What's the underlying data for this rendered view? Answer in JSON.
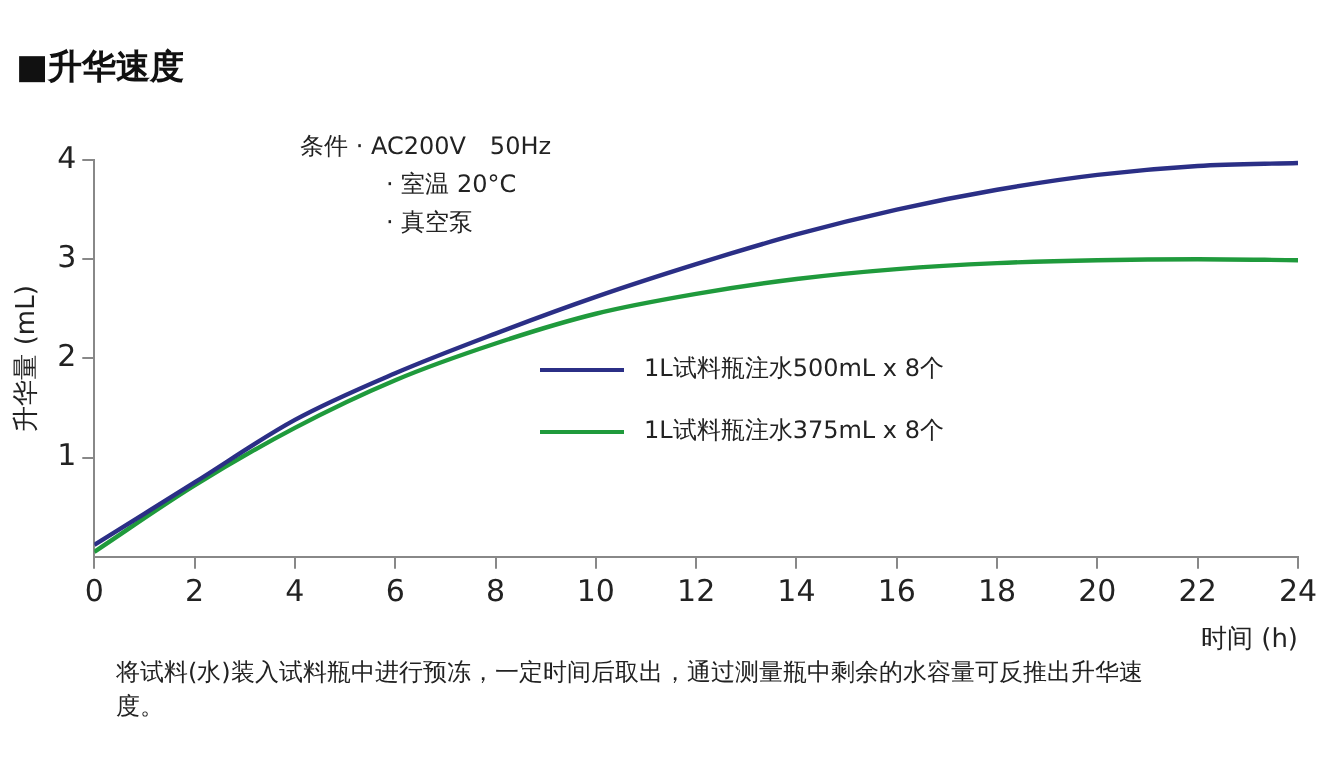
{
  "chart_data": {
    "type": "line",
    "title": "■升华速度",
    "xlabel": "时间 (h)",
    "ylabel": "升华量 (mL)",
    "x": [
      0,
      2,
      4,
      6,
      8,
      10,
      12,
      14,
      16,
      18,
      20,
      22,
      24
    ],
    "series": [
      {
        "name": "1L试料瓶注水500mL x 8个",
        "color": "#2b2f86",
        "values": [
          0.12,
          0.75,
          1.38,
          1.85,
          2.25,
          2.62,
          2.95,
          3.25,
          3.5,
          3.7,
          3.85,
          3.94,
          3.97
        ]
      },
      {
        "name": "1L试料瓶注水375mL x 8个",
        "color": "#1f9a3c",
        "values": [
          0.05,
          0.72,
          1.3,
          1.78,
          2.15,
          2.45,
          2.65,
          2.8,
          2.9,
          2.96,
          2.99,
          3.0,
          2.99
        ]
      }
    ],
    "xlim": [
      0,
      24
    ],
    "xticks": [
      0,
      2,
      4,
      6,
      8,
      10,
      12,
      14,
      16,
      18,
      20,
      22,
      24
    ],
    "ylim": [
      0,
      4
    ],
    "yticks": [
      1,
      2,
      3,
      4
    ],
    "grid": false,
    "legend": "center",
    "marker": "none",
    "line_style": "solid",
    "annotations": [
      "条件 · AC200V　50Hz",
      "· 室温 20°C",
      "· 真空泵",
      "将试料(水)装入试料瓶中进行预冻，一定时间后取出，通过测量瓶中剩余的水容量可反推出升华速度。"
    ]
  }
}
